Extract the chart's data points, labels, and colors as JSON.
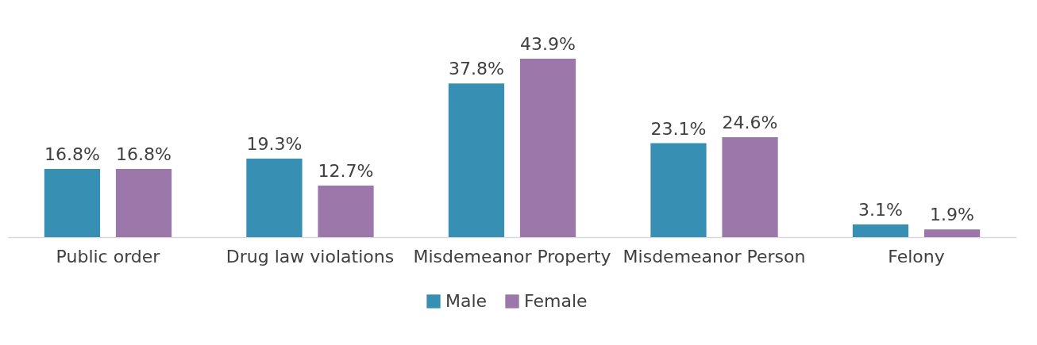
{
  "chart_data": {
    "type": "bar",
    "categories": [
      "Public order",
      "Drug law violations",
      "Misdemeanor Property",
      "Misdemeanor Person",
      "Felony"
    ],
    "series": [
      {
        "name": "Male",
        "color": "#3790b3",
        "values": [
          16.8,
          19.3,
          37.8,
          23.1,
          3.1
        ],
        "value_labels": [
          "16.8%",
          "19.3%",
          "37.8%",
          "23.1%",
          "3.1%"
        ]
      },
      {
        "name": "Female",
        "color": "#9c77aa",
        "values": [
          16.8,
          12.7,
          43.9,
          24.6,
          1.9
        ],
        "value_labels": [
          "16.8%",
          "12.7%",
          "43.9%",
          "24.6%",
          "1.9%"
        ]
      }
    ],
    "legend": "bottom"
  }
}
